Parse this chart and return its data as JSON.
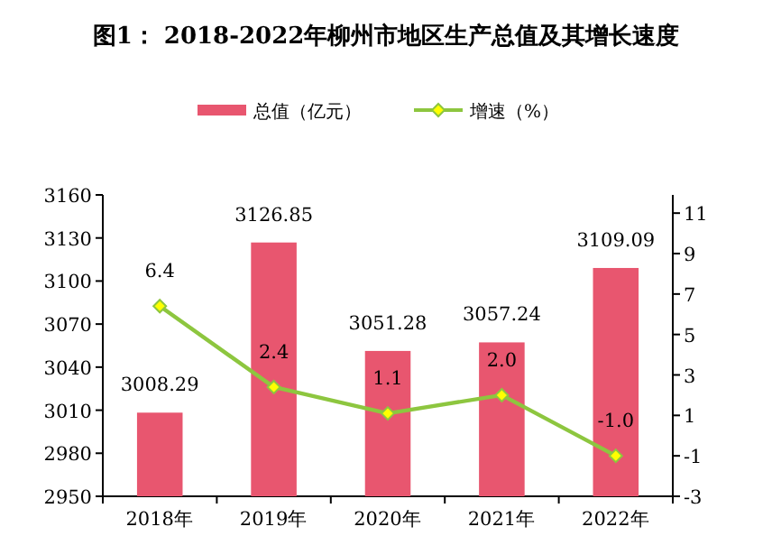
{
  "chart_data": {
    "type": "bar",
    "title": "图1： 2018-2022年柳州市地区生产总值及其增长速度",
    "categories": [
      "2018年",
      "2019年",
      "2020年",
      "2021年",
      "2022年"
    ],
    "series": [
      {
        "name": "总值（亿元）",
        "color": "#e8566f",
        "values": [
          3008.29,
          3126.85,
          3051.28,
          3057.24,
          3109.09
        ]
      },
      {
        "name": "增速（%）",
        "type": "line",
        "axis": "y2",
        "color": "#8dc63f",
        "marker": "diamond",
        "values": [
          6.4,
          2.4,
          1.1,
          2.0,
          -1.0
        ],
        "value_labels": [
          "6.4",
          "2.4",
          "1.1",
          "2.0",
          "-1.0"
        ]
      }
    ],
    "ylim": [
      2950,
      3160
    ],
    "yticks": [
      2950,
      2980,
      3010,
      3040,
      3070,
      3100,
      3130,
      3160
    ],
    "y2lim": [
      -3,
      11.9
    ],
    "y2ticks": [
      -3,
      -1,
      1,
      3,
      5,
      7,
      9,
      11
    ],
    "data_labels": true,
    "legend": "top",
    "grid": false
  }
}
